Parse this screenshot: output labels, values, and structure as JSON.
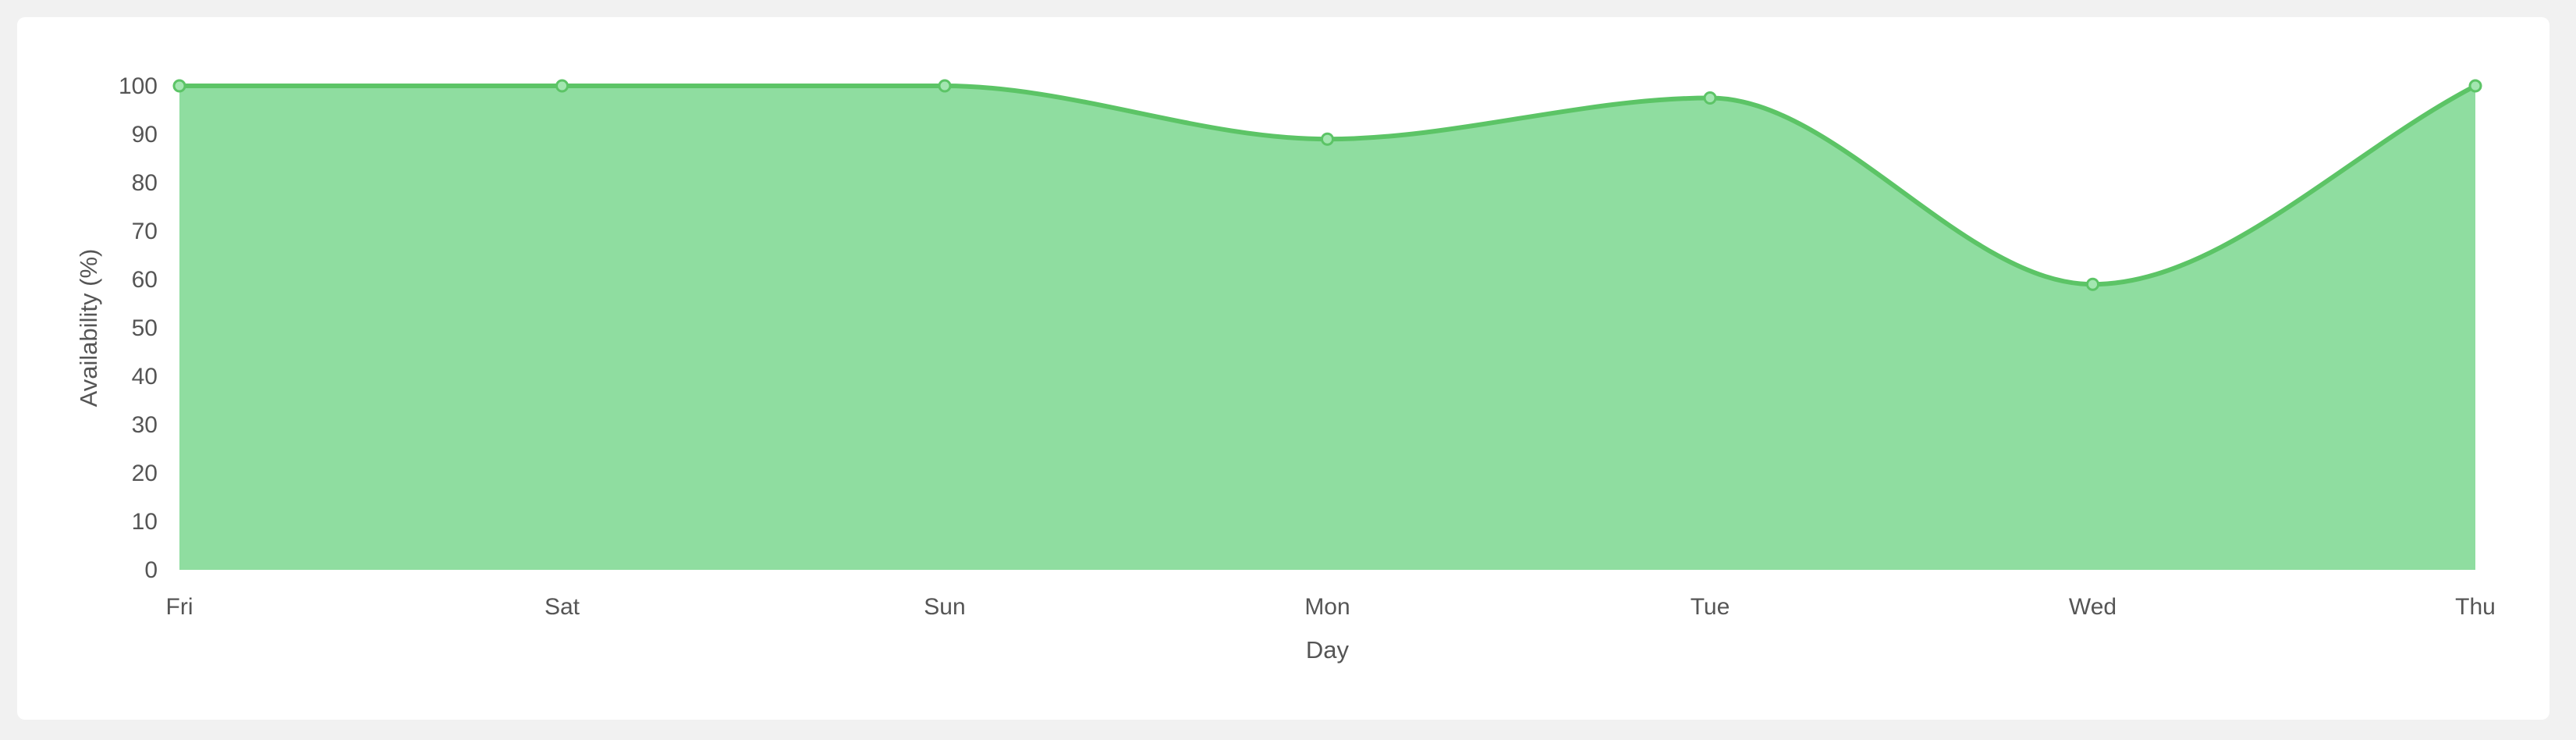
{
  "chart_data": {
    "type": "area",
    "categories": [
      "Fri",
      "Sat",
      "Sun",
      "Mon",
      "Tue",
      "Wed",
      "Thu"
    ],
    "series": [
      {
        "values": [
          100,
          100,
          100,
          89,
          97.5,
          59,
          100
        ]
      }
    ],
    "xlabel": "Day",
    "ylabel": "Availability (%)",
    "ylim": [
      0,
      100
    ],
    "yticks": [
      0,
      10,
      20,
      30,
      40,
      50,
      60,
      70,
      80,
      90,
      100
    ],
    "grid": false,
    "legend": "none",
    "colors": {
      "fill": "#8fdda0",
      "line": "#5cc466",
      "point_fill": "#a3e6b0",
      "point_stroke": "#5cc466"
    }
  }
}
